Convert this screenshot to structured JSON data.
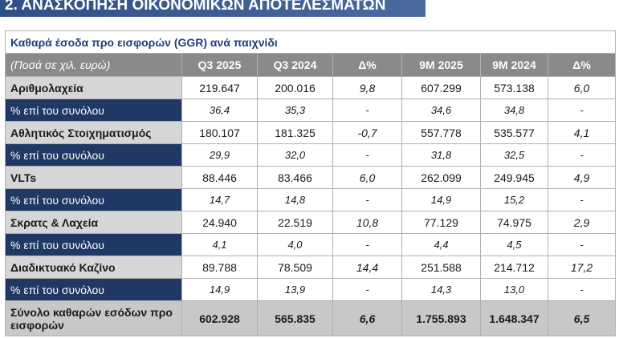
{
  "header": {
    "title": "2. ΑΝΑΣΚΟΠΗΣΗ ΟΙΚΟΝΟΜΙΚΩΝ ΑΠΟΤΕΛΕΣΜΑΤΩΝ"
  },
  "table": {
    "title": "Καθαρά έσοδα προ εισφορών (GGR) ανά παιχνίδι",
    "columns": [
      "(Ποσά σε χιλ. ευρώ)",
      "Q3 2025",
      "Q3 2024",
      "Δ%",
      "9M 2025",
      "9M 2024",
      "Δ%"
    ],
    "rows": [
      [
        "Αριθμολαχεία",
        "219.647",
        "200.016",
        "9,8",
        "607.299",
        "573.138",
        "6,0"
      ],
      [
        "% επί του συνόλου",
        "36,4",
        "35,3",
        "-",
        "34,6",
        "34,8",
        "-"
      ],
      [
        "Αθλητικός Στοιχηματισμός",
        "180.107",
        "181.325",
        "-0,7",
        "557.778",
        "535.577",
        "4,1"
      ],
      [
        "% επί του συνόλου",
        "29,9",
        "32,0",
        "-",
        "31,8",
        "32,5",
        "-"
      ],
      [
        "VLTs",
        "88.446",
        "83.466",
        "6,0",
        "262.099",
        "249.945",
        "4,9"
      ],
      [
        "% επί του συνόλου",
        "14,7",
        "14,8",
        "-",
        "14,9",
        "15,2",
        "-"
      ],
      [
        "Σκρατς & Λαχεία",
        "24.940",
        "22.519",
        "10,8",
        "77.129",
        "74.975",
        "2,9"
      ],
      [
        "% επί του συνόλου",
        "4,1",
        "4,0",
        "-",
        "4,4",
        "4,5",
        "-"
      ],
      [
        "Διαδικτυακό Καζίνο",
        "89.788",
        "78.509",
        "14,4",
        "251.588",
        "214.712",
        "17,2"
      ],
      [
        "% επί του συνόλου",
        "14,9",
        "13,9",
        "-",
        "14,3",
        "13,0",
        "-"
      ]
    ],
    "total": [
      "Σύνολο καθαρών εσόδων προ εισφορών",
      "602.928",
      "565.835",
      "6,6",
      "1.755.893",
      "1.648.347",
      "6,5"
    ]
  }
}
